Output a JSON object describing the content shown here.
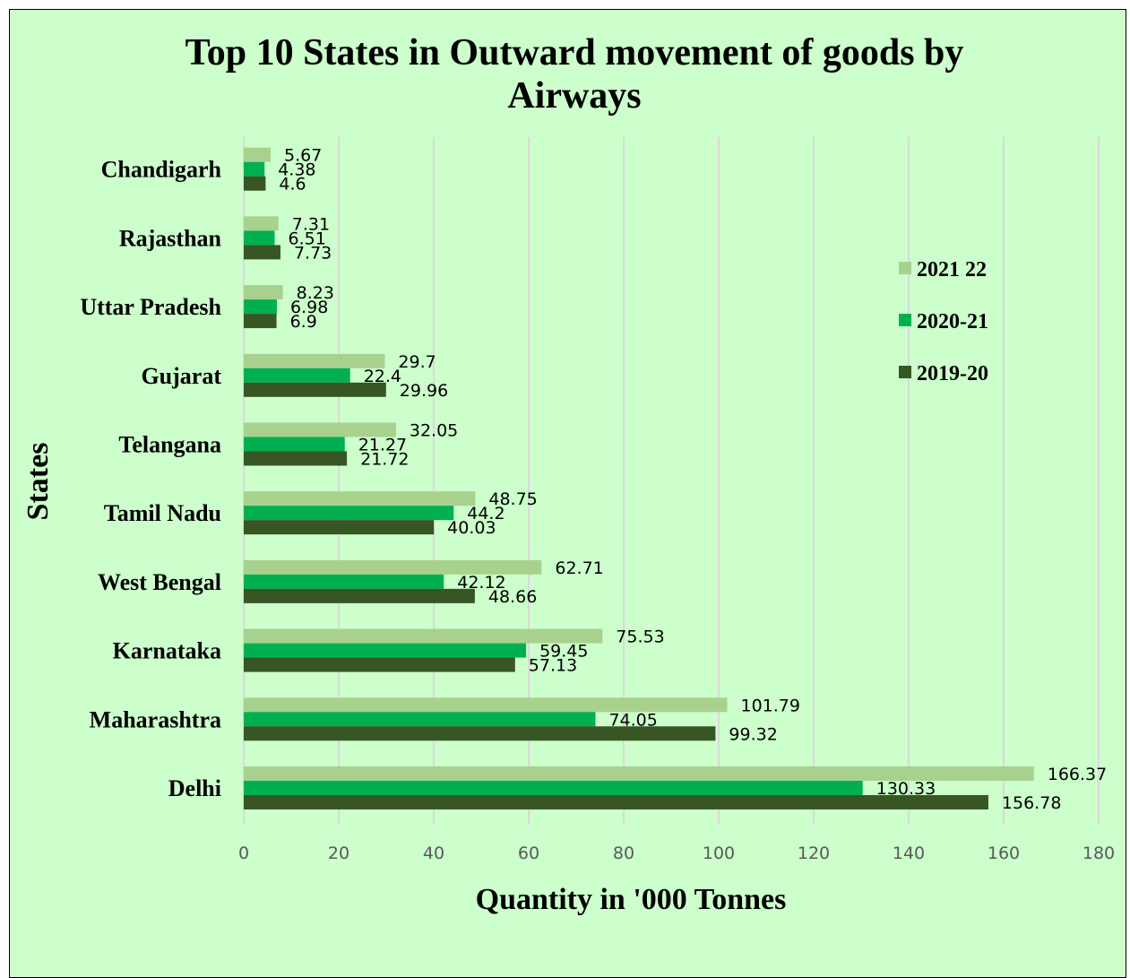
{
  "chart_data": {
    "type": "bar",
    "orientation": "horizontal",
    "title_line1": "Top 10 States in Outward movement of goods by",
    "title_line2": "Airways",
    "xlabel": "Quantity  in '000 Tonnes",
    "ylabel": "States",
    "xlim": [
      0,
      180
    ],
    "xticks": [
      "0",
      "20",
      "40",
      "60",
      "80",
      "100",
      "120",
      "140",
      "160",
      "180"
    ],
    "grid": true,
    "legend_position": "right",
    "categories": [
      "Chandigarh",
      "Rajasthan",
      "Uttar  Pradesh",
      "Gujarat",
      "Telangana",
      "Tamil Nadu",
      "West Bengal",
      "Karnataka",
      "Maharashtra",
      "Delhi"
    ],
    "series": [
      {
        "name": "2021 22",
        "color": "#a9d18e",
        "values": [
          5.67,
          7.31,
          8.23,
          29.7,
          32.05,
          48.75,
          62.71,
          75.53,
          101.79,
          166.37
        ]
      },
      {
        "name": "2020-21",
        "color": "#00b050",
        "values": [
          4.38,
          6.51,
          6.98,
          22.4,
          21.27,
          44.2,
          42.12,
          59.45,
          74.05,
          130.33
        ]
      },
      {
        "name": "2019-20",
        "color": "#375623",
        "values": [
          4.6,
          7.73,
          6.9,
          29.96,
          21.72,
          40.03,
          48.66,
          57.13,
          99.32,
          156.78
        ]
      }
    ],
    "background_color": "#ccffcc"
  }
}
